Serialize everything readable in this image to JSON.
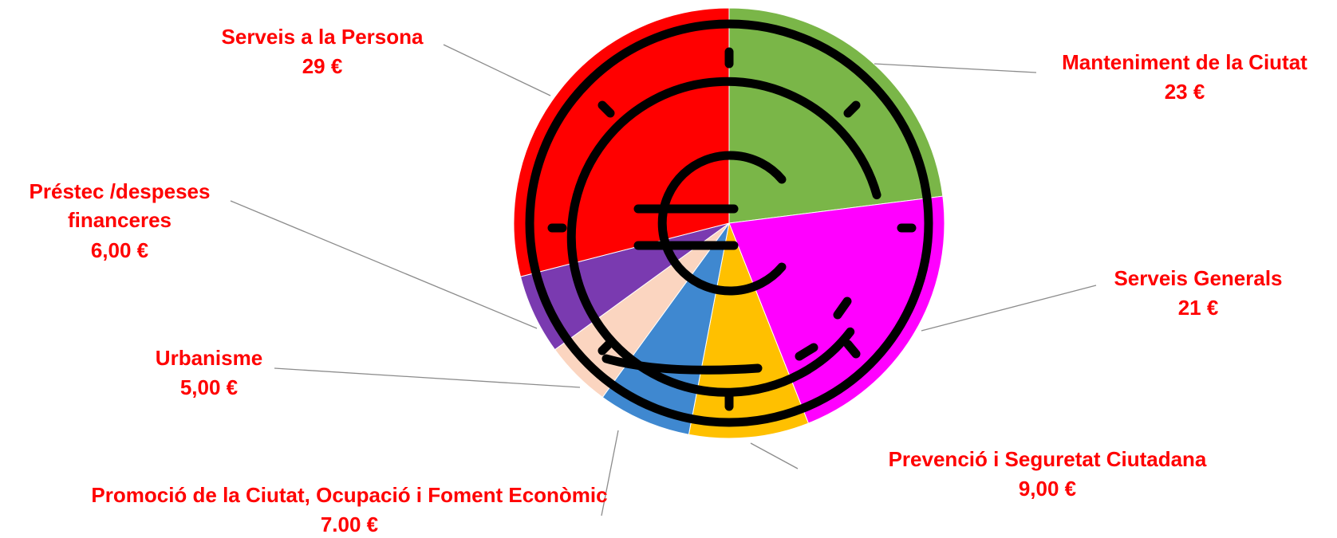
{
  "chart_data": {
    "type": "pie",
    "categories": [
      "Manteniment de la Ciutat",
      "Serveis Generals",
      "Prevenció i Seguretat Ciutadana",
      "Promoció de la Ciutat, Ocupació i Foment Econòmic",
      "Urbanisme",
      "Préstec /despeses financeres",
      "Serveis a la Persona"
    ],
    "values": [
      23,
      21,
      9,
      7,
      5,
      6,
      29
    ],
    "value_labels": [
      "23  €",
      "21 €",
      "9,00  €",
      "7.00   €",
      "5,00  €",
      "6,00  €",
      "29  €"
    ],
    "colors": [
      "#7ab648",
      "#ff00ff",
      "#ffc000",
      "#3f88d0",
      "#fbd5c0",
      "#7a3ab0",
      "#ff0000"
    ]
  }
}
